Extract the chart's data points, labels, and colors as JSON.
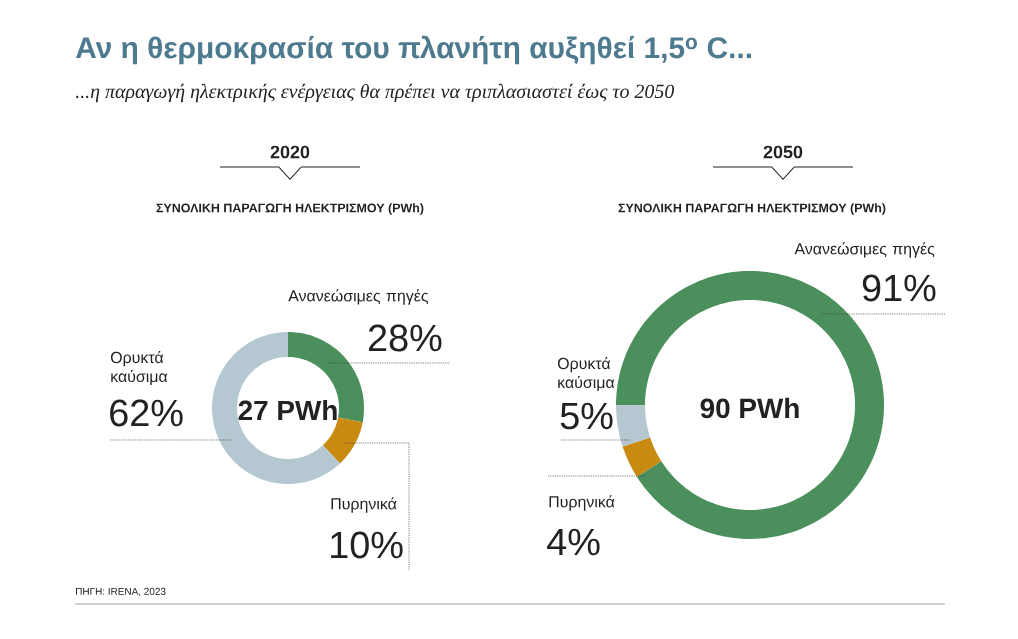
{
  "chart_data": [
    {
      "type": "donut",
      "title": "Αν η θερμοκρασία του πλανήτη αυξηθεί 1,5$^{ο}$ C...",
      "subtitle": "...η παραγωγή ηλεκτρικής ενέργειας θα πρέπει να τριπλασιαστεί έως το 2050",
      "categories": [
        "Ανανεώσιμες πηγές",
        "Πυρηνικά",
        "Ορυκτά καύσιμα"
      ],
      "values": [
        28,
        10,
        62
      ],
      "colors": [
        "#4a8f5c",
        "#c98a12",
        "#b5c7d1"
      ],
      "value_labels": [
        "28%",
        "10%",
        "62%"
      ],
      "annotations": [
        "2020",
        "ΣΥΝΟΛΙΚΗ ΠΑΡΑΓΩΓΗ ΗΛΕΚΤΡΙΣΜΟΥ (PWh)",
        "27 PWh",
        "ΠΗΓΗ: IRENA, 2023"
      ]
    },
    {
      "type": "donut",
      "title": "2050",
      "subtitle": "ΣΥΝΟΛΙΚΗ ΠΑΡΑΓΩΓΗ ΗΛΕΚΤΡΙΣΜΟΥ (PWh)",
      "categories": [
        "Ανανεώσιμες πηγές",
        "Πυρηνικά",
        "Ορυκτά καύσιμα"
      ],
      "values": [
        91,
        4,
        5
      ],
      "colors": [
        "#4a8f5c",
        "#c98a12",
        "#b5c7d1"
      ],
      "value_labels": [
        "91%",
        "4%",
        "5%"
      ],
      "annotations": [
        "90 PWh"
      ]
    }
  ]
}
